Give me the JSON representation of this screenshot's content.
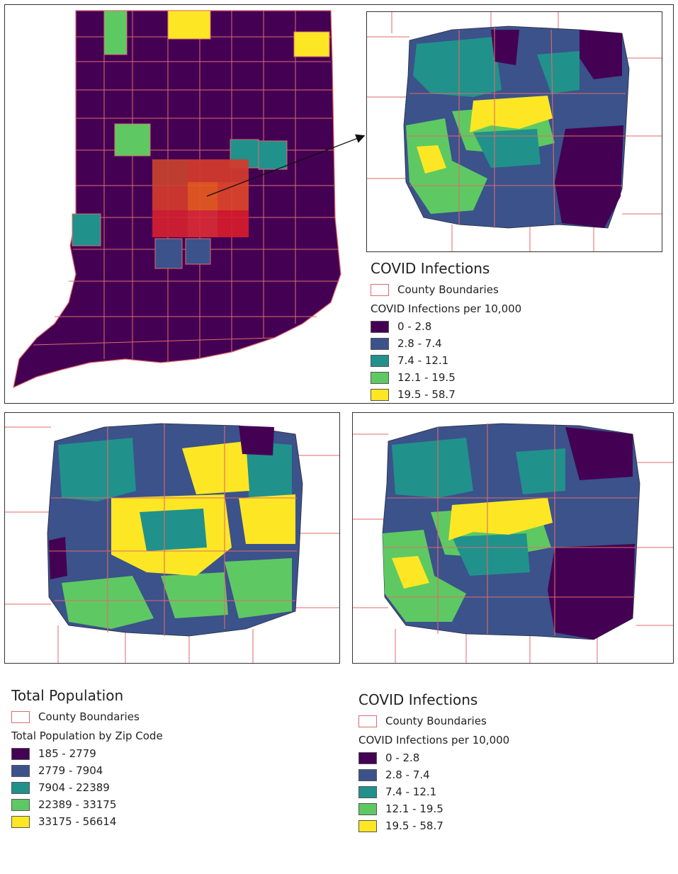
{
  "infection_legend": {
    "title": "COVID Infections",
    "boundary_label": "County Boundaries",
    "subtitle": "COVID Infections per 10,000",
    "classes": [
      {
        "label": "0 - 2.8",
        "color": "#440154"
      },
      {
        "label": "2.8 - 7.4",
        "color": "#3b528b"
      },
      {
        "label": "7.4 - 12.1",
        "color": "#21918c"
      },
      {
        "label": "12.1 - 19.5",
        "color": "#5ec962"
      },
      {
        "label": "19.5 - 58.7",
        "color": "#fde725"
      }
    ]
  },
  "population_legend": {
    "title": "Total Population",
    "boundary_label": "County Boundaries",
    "subtitle": "Total Population by Zip Code",
    "classes": [
      {
        "label": "185 - 2779",
        "color": "#440154"
      },
      {
        "label": "2779 - 7904",
        "color": "#3b528b"
      },
      {
        "label": "7904 - 22389",
        "color": "#21918c"
      },
      {
        "label": "22389 - 33175",
        "color": "#5ec962"
      },
      {
        "label": "33175 - 56614",
        "color": "#fde725"
      }
    ]
  },
  "infection_legend_bottom": {
    "title": "COVID Infections",
    "boundary_label": "County Boundaries",
    "subtitle": "COVID Infections per 10,000",
    "classes": [
      {
        "label": "0 - 2.8",
        "color": "#440154"
      },
      {
        "label": "2.8 - 7.4",
        "color": "#3b528b"
      },
      {
        "label": "7.4 - 12.1",
        "color": "#21918c"
      },
      {
        "label": "12.1 - 19.5",
        "color": "#5ec962"
      },
      {
        "label": "19.5 - 58.7",
        "color": "#fde725"
      }
    ]
  },
  "colors": {
    "boundary": "#e06a6a",
    "focus_area": "#e0302c",
    "panel_border": "#333333"
  }
}
